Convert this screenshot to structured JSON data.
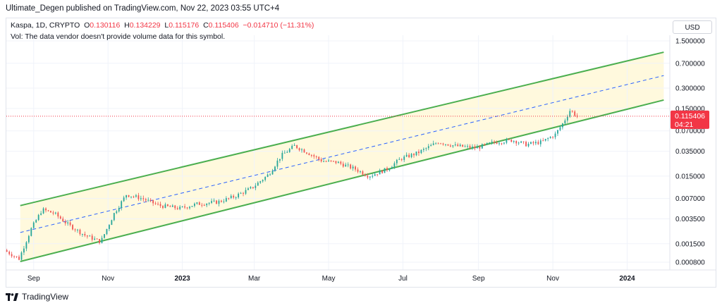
{
  "header": {
    "published": "Ultimate_Degen published on TradingView.com, Nov 22, 2023 03:55 UTC+4"
  },
  "legend": {
    "symbol": "Kaspa, 1D, CRYPTO",
    "o_label": "O",
    "o_value": "0.130116",
    "h_label": "H",
    "h_value": "0.134229",
    "l_label": "L",
    "l_value": "0.115176",
    "c_label": "C",
    "c_value": "0.115406",
    "change": "−0.014710 (−11.31%)",
    "vol_note": "Vol: The data vendor doesn't provide volume data for this symbol."
  },
  "currency_button": "USD",
  "price_badge": {
    "price": "0.115406",
    "countdown": "04:21"
  },
  "brand": "TradingView",
  "colors": {
    "up": "#26a69a",
    "down": "#ef5350",
    "channel": "#4caf50",
    "channel_fill": "#fff9dd",
    "midline": "#2962ff",
    "price_line": "#f23645"
  },
  "chart_data": {
    "type": "candlestick",
    "y_scale": "log",
    "y_ticks": [
      "1.500000",
      "0.700000",
      "0.300000",
      "0.150000",
      "0.070000",
      "0.035000",
      "0.015000",
      "0.007000",
      "0.003500",
      "0.001500",
      "0.000800"
    ],
    "x_ticks": [
      "Sep",
      "Nov",
      "2023",
      "Mar",
      "May",
      "Jul",
      "Sep",
      "Nov",
      "2024"
    ],
    "last_close": 0.115406,
    "series": [
      {
        "date": "2022-08-10",
        "close": 0.0012
      },
      {
        "date": "2022-08-22",
        "close": 0.0009
      },
      {
        "date": "2022-09-01",
        "close": 0.0025
      },
      {
        "date": "2022-09-10",
        "close": 0.0048
      },
      {
        "date": "2022-09-20",
        "close": 0.0042
      },
      {
        "date": "2022-10-01",
        "close": 0.0029
      },
      {
        "date": "2022-10-15",
        "close": 0.002
      },
      {
        "date": "2022-10-28",
        "close": 0.0016
      },
      {
        "date": "2022-11-08",
        "close": 0.0042
      },
      {
        "date": "2022-11-18",
        "close": 0.008
      },
      {
        "date": "2022-12-01",
        "close": 0.007
      },
      {
        "date": "2022-12-15",
        "close": 0.0055
      },
      {
        "date": "2023-01-01",
        "close": 0.005
      },
      {
        "date": "2023-01-15",
        "close": 0.0058
      },
      {
        "date": "2023-02-01",
        "close": 0.0062
      },
      {
        "date": "2023-02-15",
        "close": 0.0075
      },
      {
        "date": "2023-03-01",
        "close": 0.01
      },
      {
        "date": "2023-03-15",
        "close": 0.016
      },
      {
        "date": "2023-03-25",
        "close": 0.03
      },
      {
        "date": "2023-04-05",
        "close": 0.042
      },
      {
        "date": "2023-04-15",
        "close": 0.034
      },
      {
        "date": "2023-04-28",
        "close": 0.025
      },
      {
        "date": "2023-05-10",
        "close": 0.024
      },
      {
        "date": "2023-05-25",
        "close": 0.019
      },
      {
        "date": "2023-06-05",
        "close": 0.015
      },
      {
        "date": "2023-06-20",
        "close": 0.019
      },
      {
        "date": "2023-07-01",
        "close": 0.027
      },
      {
        "date": "2023-07-15",
        "close": 0.033
      },
      {
        "date": "2023-08-01",
        "close": 0.048
      },
      {
        "date": "2023-08-15",
        "close": 0.042
      },
      {
        "date": "2023-09-01",
        "close": 0.039
      },
      {
        "date": "2023-09-15",
        "close": 0.047
      },
      {
        "date": "2023-10-01",
        "close": 0.051
      },
      {
        "date": "2023-10-12",
        "close": 0.044
      },
      {
        "date": "2023-10-25",
        "close": 0.048
      },
      {
        "date": "2023-11-05",
        "close": 0.062
      },
      {
        "date": "2023-11-12",
        "close": 0.095
      },
      {
        "date": "2023-11-17",
        "close": 0.14
      },
      {
        "date": "2023-11-20",
        "close": 0.13
      },
      {
        "date": "2023-11-22",
        "close": 0.1154
      }
    ],
    "channel": {
      "upper": [
        {
          "date": "2022-08-21",
          "value": 0.0055
        },
        {
          "date": "2024-01-31",
          "value": 1.02
        }
      ],
      "lower": [
        {
          "date": "2022-08-21",
          "value": 0.00082
        },
        {
          "date": "2024-01-31",
          "value": 0.2
        }
      ],
      "middle": [
        {
          "date": "2022-08-21",
          "value": 0.0022
        },
        {
          "date": "2024-01-31",
          "value": 0.46
        }
      ]
    }
  }
}
